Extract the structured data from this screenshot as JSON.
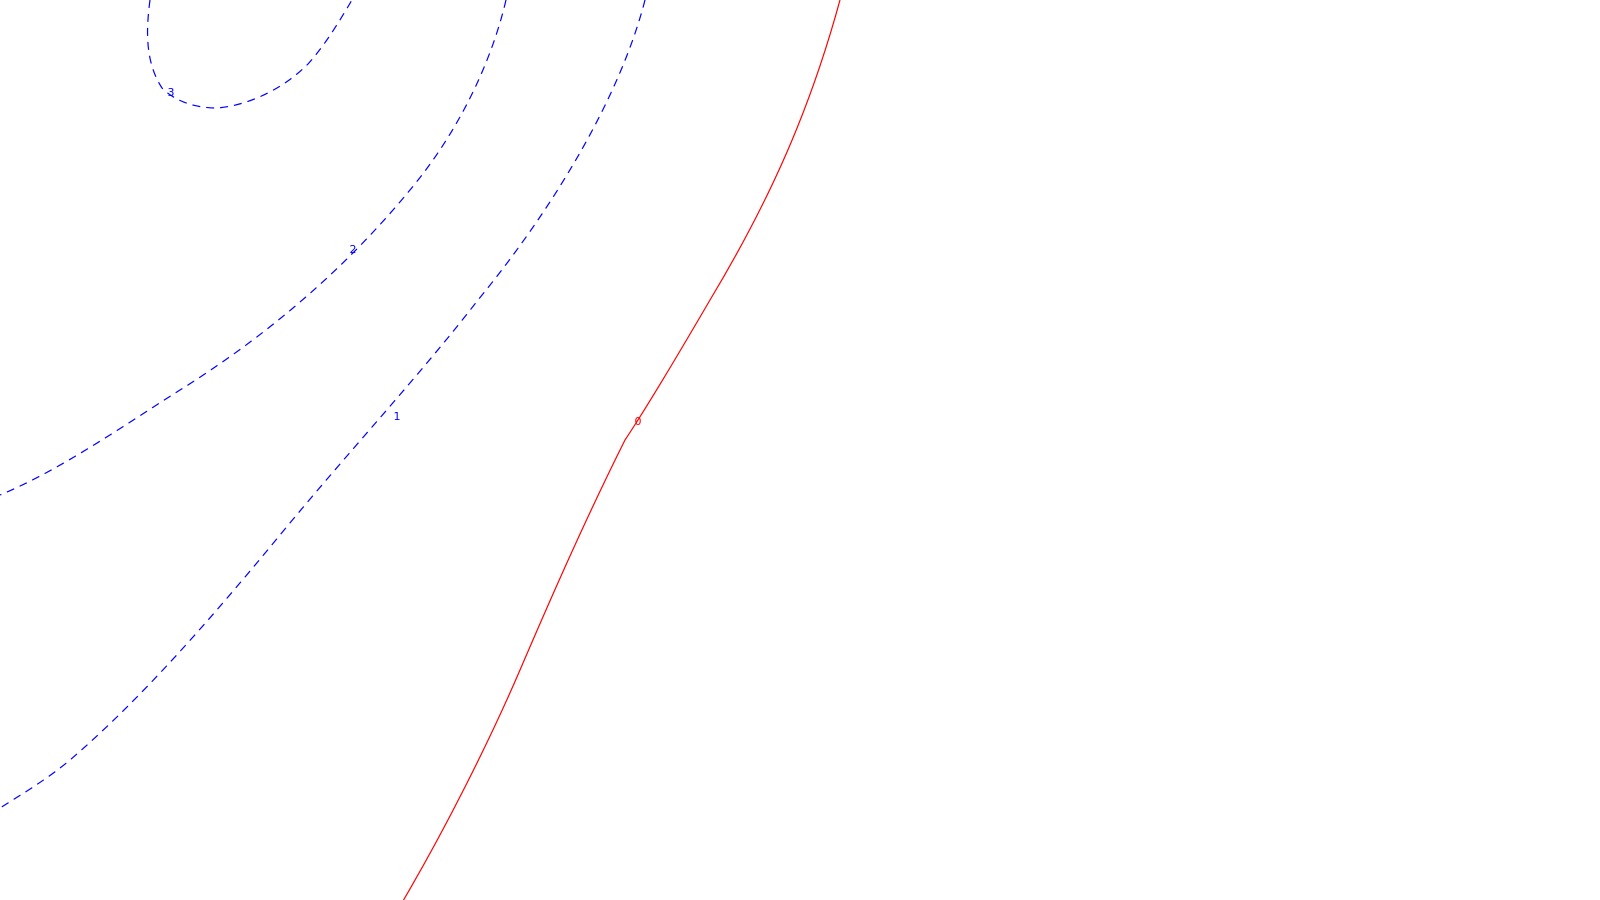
{
  "chart_data": {
    "type": "contour",
    "title": "",
    "xlabel": "",
    "ylabel": "",
    "grid": false,
    "legend": "none",
    "colors": {
      "negative": "#0000ff",
      "zero": "#ff0000"
    },
    "contours": [
      {
        "level": 3,
        "label": "3",
        "style": "dashed",
        "color": "#0000ff"
      },
      {
        "level": 2,
        "label": "2",
        "style": "dashed",
        "color": "#0000ff"
      },
      {
        "level": 1,
        "label": "1",
        "style": "dashed",
        "color": "#0000ff"
      },
      {
        "level": 0,
        "label": "0",
        "style": "solid",
        "color": "#ff0000"
      }
    ]
  }
}
